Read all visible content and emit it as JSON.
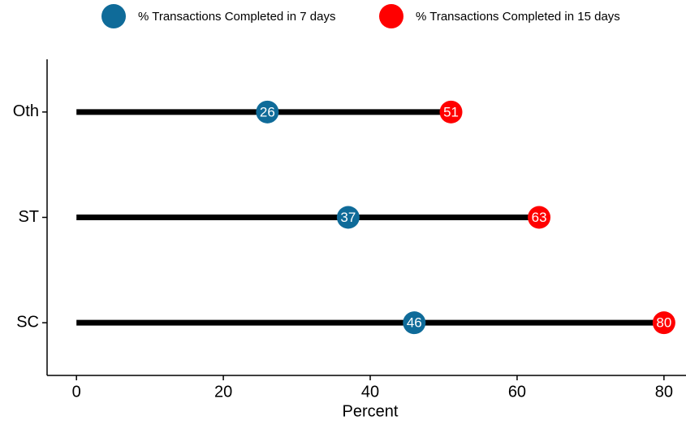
{
  "chart_data": {
    "type": "dumbbell",
    "categories": [
      "Oth",
      "ST",
      "SC"
    ],
    "series": [
      {
        "name": "% Transactions Completed in 7 days",
        "color": "#0f6b99",
        "values": [
          26,
          37,
          46
        ]
      },
      {
        "name": "% Transactions Completed in 15 days",
        "color": "#ff0000",
        "values": [
          51,
          63,
          80
        ]
      }
    ],
    "x_label": "Percent",
    "xlim": [
      -4,
      83
    ],
    "xticks": [
      0,
      20,
      40,
      60,
      80
    ],
    "legend": "top"
  }
}
